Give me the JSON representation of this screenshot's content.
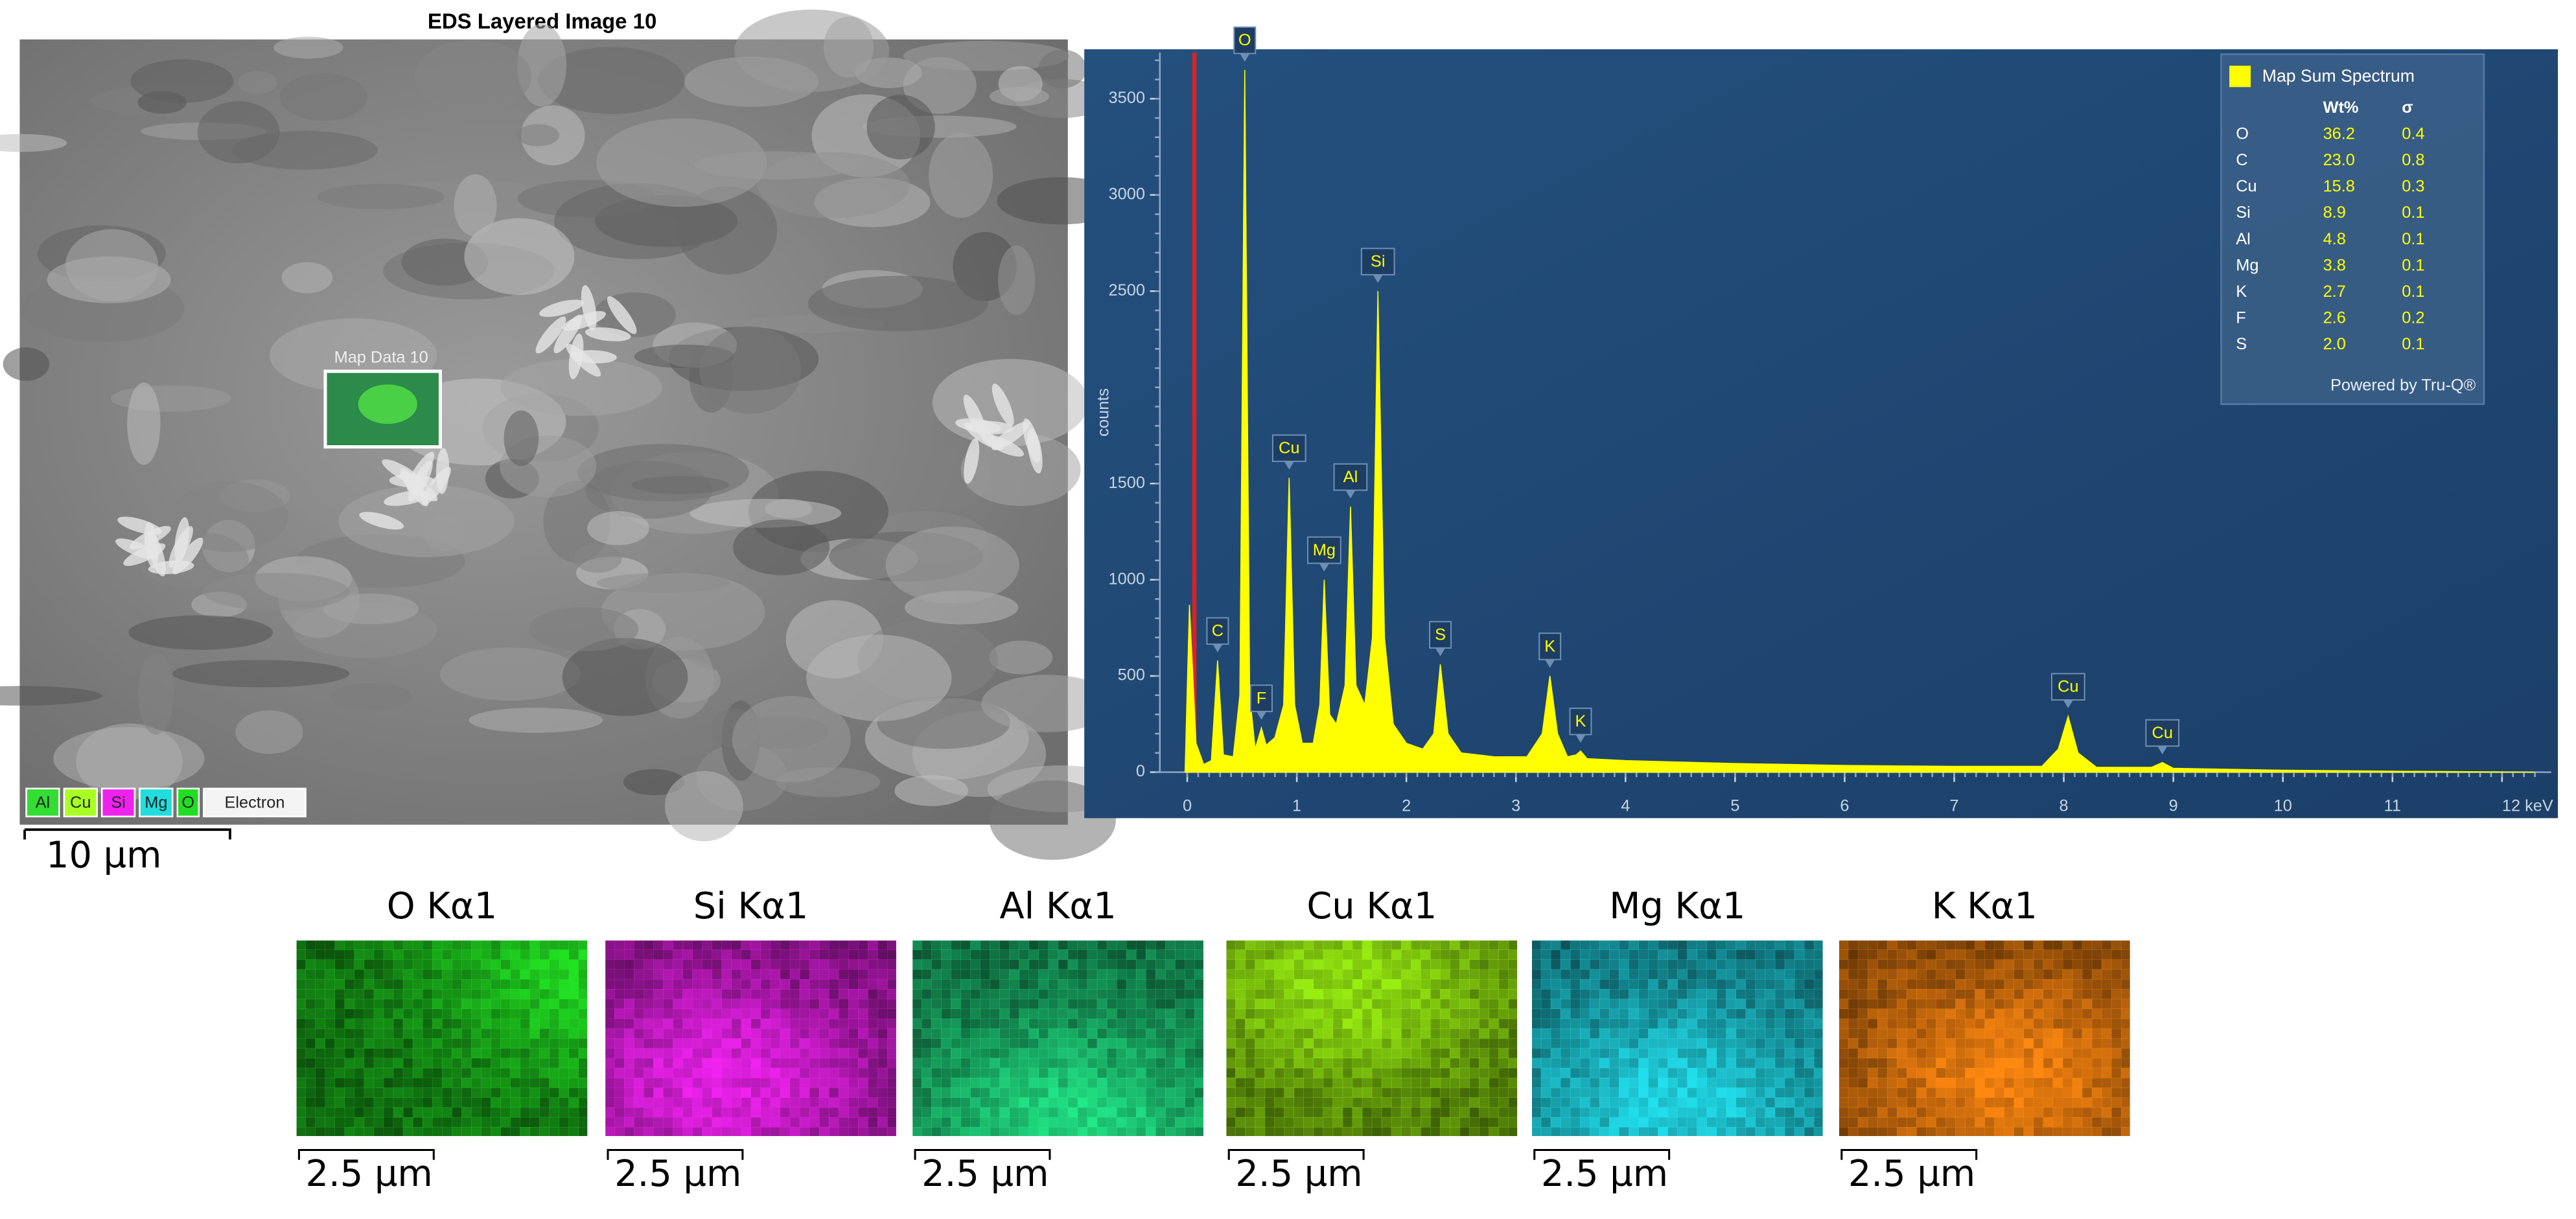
{
  "sem_image": {
    "title": "EDS Layered Image 10",
    "region_label": "Map Data 10",
    "scale_bar": "10 µm",
    "legend": [
      {
        "name": "Al",
        "color": "#33dd33"
      },
      {
        "name": "Cu",
        "color": "#aaff22"
      },
      {
        "name": "Si",
        "color": "#ee22ee"
      },
      {
        "name": "Mg",
        "color": "#22dddd"
      },
      {
        "name": "O",
        "color": "#22dd22"
      },
      {
        "name": "Electron",
        "color": "#f4f4f4"
      }
    ]
  },
  "chart_data": {
    "type": "area",
    "y_label": "counts",
    "color": "#ffff00",
    "xlim": [
      -0.25,
      12.45
    ],
    "ylim": [
      0,
      3740
    ],
    "xticks": [
      0,
      1,
      2,
      3,
      4,
      5,
      6,
      7,
      8,
      9,
      10,
      11,
      {
        "value": 12,
        "label": "12 keV"
      }
    ],
    "yticks": [
      0,
      500,
      1000,
      1500,
      2500,
      3000,
      3500
    ],
    "x": [
      -0.02,
      0.02,
      0.08,
      0.15,
      0.22,
      0.277,
      0.33,
      0.42,
      0.48,
      0.525,
      0.57,
      0.62,
      0.677,
      0.72,
      0.8,
      0.88,
      0.93,
      0.98,
      1.05,
      1.15,
      1.21,
      1.25,
      1.3,
      1.36,
      1.44,
      1.49,
      1.54,
      1.62,
      1.69,
      1.74,
      1.8,
      1.88,
      2.0,
      2.15,
      2.25,
      2.31,
      2.38,
      2.5,
      2.8,
      3.1,
      3.24,
      3.31,
      3.38,
      3.47,
      3.55,
      3.59,
      3.65,
      4.0,
      5.0,
      6.0,
      7.0,
      7.8,
      7.95,
      8.04,
      8.13,
      8.3,
      8.8,
      8.9,
      9.0,
      10,
      11,
      12.3
    ],
    "values": [
      0,
      870,
      150,
      40,
      60,
      580,
      90,
      80,
      400,
      3650,
      400,
      120,
      230,
      140,
      180,
      350,
      1530,
      350,
      150,
      150,
      350,
      1000,
      300,
      250,
      450,
      1380,
      450,
      350,
      700,
      2500,
      700,
      250,
      150,
      120,
      200,
      560,
      200,
      100,
      80,
      80,
      200,
      500,
      200,
      80,
      90,
      110,
      70,
      60,
      45,
      35,
      30,
      30,
      120,
      290,
      100,
      25,
      25,
      50,
      20,
      10,
      5,
      0
    ],
    "annotations": [
      {
        "text": "O",
        "x": 0.525,
        "y": 3650
      },
      {
        "text": "C",
        "x": 0.277,
        "y": 580
      },
      {
        "text": "F",
        "x": 0.677,
        "y": 230
      },
      {
        "text": "Cu",
        "x": 0.93,
        "y": 1530
      },
      {
        "text": "Mg",
        "x": 1.25,
        "y": 1000
      },
      {
        "text": "Al",
        "x": 1.49,
        "y": 1380
      },
      {
        "text": "Si",
        "x": 1.74,
        "y": 2500
      },
      {
        "text": "S",
        "x": 2.31,
        "y": 560
      },
      {
        "text": "K",
        "x": 3.31,
        "y": 500
      },
      {
        "text": "K",
        "x": 3.59,
        "y": 110
      },
      {
        "text": "Cu",
        "x": 8.04,
        "y": 290
      },
      {
        "text": "Cu",
        "x": 8.9,
        "y": 50
      }
    ]
  },
  "quant_table": {
    "title": "Map Sum Spectrum",
    "color": "#ffff00",
    "columns": [
      "Wt%",
      "σ"
    ],
    "rows": [
      [
        "O",
        "36.2",
        "0.4"
      ],
      [
        "C",
        "23.0",
        "0.8"
      ],
      [
        "Cu",
        "15.8",
        "0.3"
      ],
      [
        "Si",
        "8.9",
        "0.1"
      ],
      [
        "Al",
        "4.8",
        "0.1"
      ],
      [
        "Mg",
        "3.8",
        "0.1"
      ],
      [
        "K",
        "2.7",
        "0.1"
      ],
      [
        "F",
        "2.6",
        "0.2"
      ],
      [
        "S",
        "2.0",
        "0.1"
      ]
    ],
    "footer": "Powered by Tru-Q®"
  },
  "maps": [
    {
      "title": "O Kα1",
      "color": "#22e022",
      "scale_bar": "2.5 µm"
    },
    {
      "title": "Si Kα1",
      "color": "#f022f0",
      "scale_bar": "2.5 µm"
    },
    {
      "title": "Al Kα1",
      "color": "#22e888",
      "scale_bar": "2.5 µm"
    },
    {
      "title": "Cu Kα1",
      "color": "#99ee11",
      "scale_bar": "2.5 µm"
    },
    {
      "title": "Mg Kα1",
      "color": "#22e0ee",
      "scale_bar": "2.5 µm"
    },
    {
      "title": "K Kα1",
      "color": "#ff8811",
      "scale_bar": "2.5 µm"
    }
  ]
}
